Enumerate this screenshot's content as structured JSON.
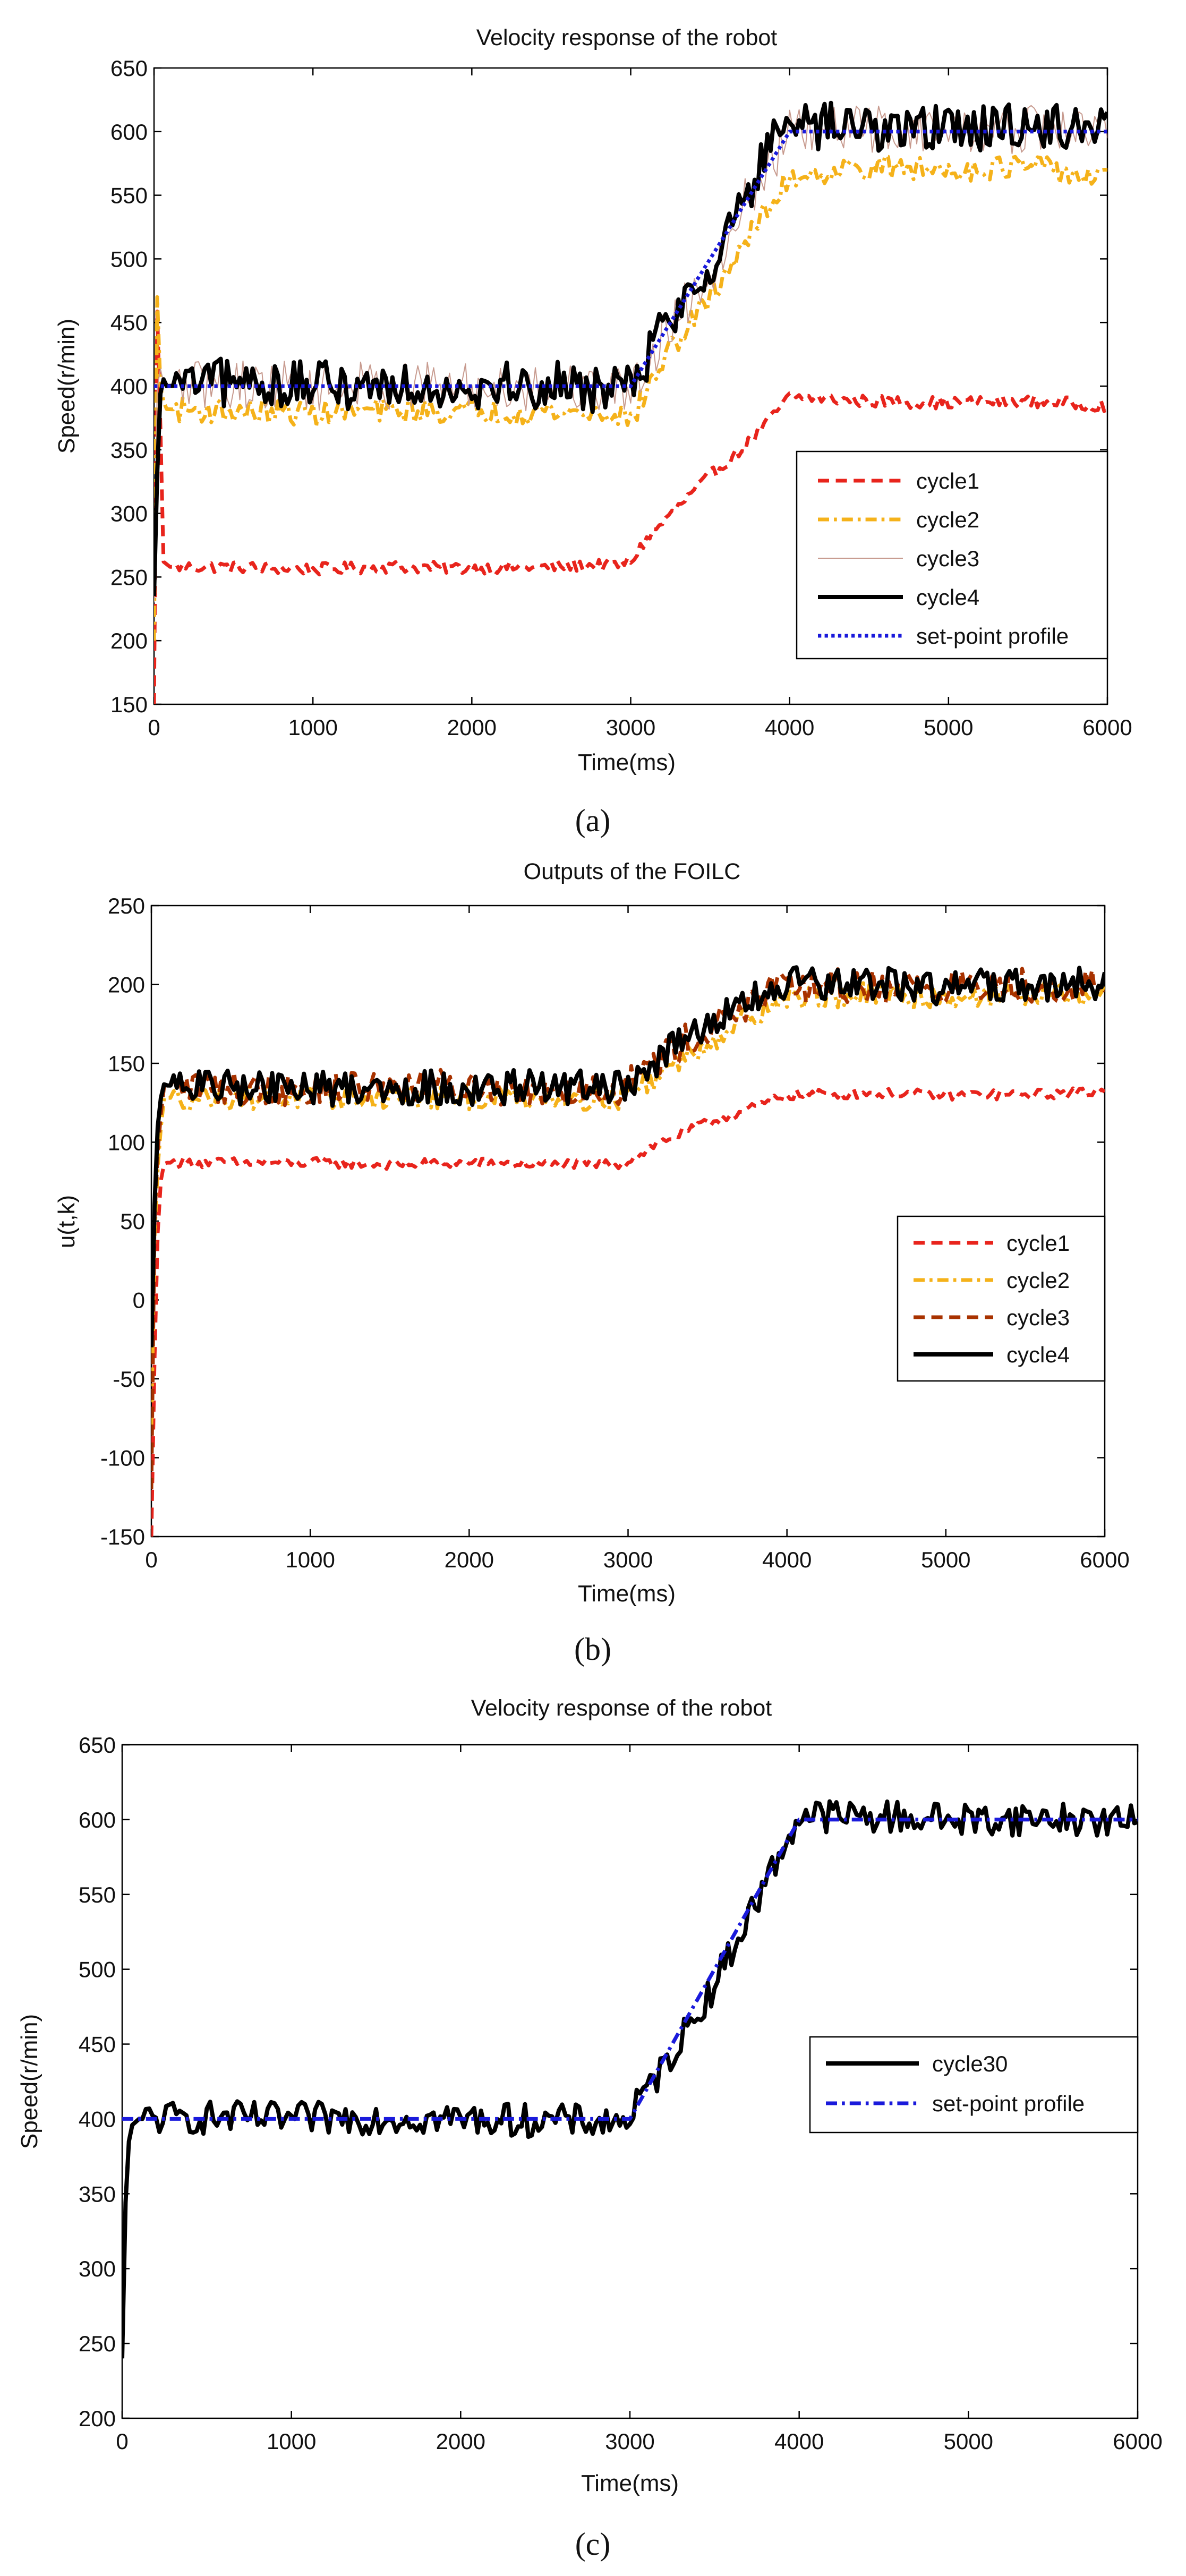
{
  "chart_data": [
    {
      "type": "line",
      "panel_label": "(a)",
      "title": "Velocity response of the robot",
      "xlabel": "Time(ms)",
      "ylabel": "Speed(r/min)",
      "xlim": [
        0,
        6000
      ],
      "ylim": [
        150,
        650
      ],
      "xticks": [
        0,
        1000,
        2000,
        3000,
        4000,
        5000,
        6000
      ],
      "yticks": [
        150,
        200,
        250,
        300,
        350,
        400,
        450,
        500,
        550,
        600,
        650
      ],
      "legend_position": "middle-right",
      "series": [
        {
          "name": "cycle1",
          "color": "#e8241c",
          "style": "dashed",
          "width": 7,
          "points": [
            [
              0,
              150
            ],
            [
              15,
              480
            ],
            [
              35,
              395
            ],
            [
              60,
              262
            ],
            [
              100,
              258
            ],
            [
              500,
              258
            ],
            [
              1000,
              256
            ],
            [
              1500,
              258
            ],
            [
              2000,
              257
            ],
            [
              2500,
              258
            ],
            [
              2950,
              260
            ],
            [
              3000,
              262
            ],
            [
              3100,
              280
            ],
            [
              3300,
              305
            ],
            [
              3500,
              330
            ],
            [
              3700,
              350
            ],
            [
              3850,
              370
            ],
            [
              4000,
              392
            ],
            [
              4500,
              388
            ],
            [
              5000,
              387
            ],
            [
              5500,
              388
            ],
            [
              6000,
              385
            ]
          ],
          "noise": 3
        },
        {
          "name": "cycle2",
          "color": "#f5b21a",
          "style": "dashdot",
          "width": 7,
          "points": [
            [
              0,
              200
            ],
            [
              20,
              470
            ],
            [
              40,
              400
            ],
            [
              70,
              382
            ],
            [
              500,
              380
            ],
            [
              1000,
              379
            ],
            [
              1500,
              381
            ],
            [
              2000,
              380
            ],
            [
              2500,
              380
            ],
            [
              2950,
              378
            ],
            [
              3000,
              372
            ],
            [
              3200,
              420
            ],
            [
              3500,
              470
            ],
            [
              3700,
              510
            ],
            [
              3900,
              545
            ],
            [
              4000,
              565
            ],
            [
              4500,
              572
            ],
            [
              5000,
              570
            ],
            [
              5500,
              573
            ],
            [
              6000,
              562
            ]
          ],
          "noise": 6
        },
        {
          "name": "cycle3",
          "color": "#c79a8e",
          "style": "solid",
          "width": 2,
          "points": [
            [
              0,
              230
            ],
            [
              25,
              440
            ],
            [
              45,
              405
            ],
            [
              80,
              400
            ],
            [
              500,
              402
            ],
            [
              1000,
              400
            ],
            [
              1500,
              401
            ],
            [
              2000,
              399
            ],
            [
              2500,
              400
            ],
            [
              2950,
              398
            ],
            [
              3000,
              395
            ],
            [
              3200,
              440
            ],
            [
              3500,
              490
            ],
            [
              3700,
              540
            ],
            [
              3900,
              580
            ],
            [
              4000,
              598
            ],
            [
              4500,
              603
            ],
            [
              5000,
              600
            ],
            [
              5500,
              602
            ],
            [
              6000,
              600
            ]
          ],
          "noise": 12
        },
        {
          "name": "cycle4",
          "color": "#000000",
          "style": "solid",
          "width": 8,
          "points": [
            [
              0,
              235
            ],
            [
              30,
              380
            ],
            [
              50,
              408
            ],
            [
              80,
              400
            ],
            [
              500,
              403
            ],
            [
              1000,
              400
            ],
            [
              1500,
              402
            ],
            [
              2000,
              401
            ],
            [
              2500,
              400
            ],
            [
              2950,
              398
            ],
            [
              3000,
              400
            ],
            [
              3200,
              445
            ],
            [
              3500,
              495
            ],
            [
              3700,
              545
            ],
            [
              3900,
              590
            ],
            [
              4000,
              603
            ],
            [
              4500,
              604
            ],
            [
              5000,
              602
            ],
            [
              5500,
              605
            ],
            [
              6000,
              603
            ]
          ],
          "noise": 12
        },
        {
          "name": "set-point profile",
          "color": "#1a1adb",
          "style": "dotted",
          "width": 7,
          "points": [
            [
              0,
              400
            ],
            [
              3000,
              400
            ],
            [
              4000,
              600
            ],
            [
              6000,
              600
            ]
          ],
          "noise": 0
        }
      ]
    },
    {
      "type": "line",
      "panel_label": "(b)",
      "title": "Outputs of the FOILC",
      "xlabel": "Time(ms)",
      "ylabel": "u(t,k)",
      "xlim": [
        0,
        6000
      ],
      "ylim": [
        -150,
        250
      ],
      "xticks": [
        0,
        1000,
        2000,
        3000,
        4000,
        5000,
        6000
      ],
      "yticks": [
        -150,
        -100,
        -50,
        0,
        50,
        100,
        150,
        200,
        250
      ],
      "legend_position": "right",
      "series": [
        {
          "name": "cycle1",
          "color": "#e8241c",
          "style": "dashed",
          "width": 7,
          "points": [
            [
              0,
              -150
            ],
            [
              25,
              -10
            ],
            [
              45,
              60
            ],
            [
              70,
              86
            ],
            [
              100,
              87
            ],
            [
              500,
              87
            ],
            [
              1000,
              87
            ],
            [
              1500,
              86
            ],
            [
              2000,
              87
            ],
            [
              2500,
              86
            ],
            [
              2950,
              86
            ],
            [
              3000,
              88
            ],
            [
              3200,
              100
            ],
            [
              3500,
              112
            ],
            [
              3800,
              122
            ],
            [
              4000,
              130
            ],
            [
              4500,
              131
            ],
            [
              5000,
              130
            ],
            [
              5500,
              130
            ],
            [
              6000,
              132
            ]
          ],
          "noise": 2
        },
        {
          "name": "cycle2",
          "color": "#f5b21a",
          "style": "dashdot",
          "width": 7,
          "points": [
            [
              0,
              -80
            ],
            [
              20,
              40
            ],
            [
              45,
              95
            ],
            [
              80,
              128
            ],
            [
              500,
              129
            ],
            [
              1000,
              128
            ],
            [
              1500,
              129
            ],
            [
              2000,
              128
            ],
            [
              2500,
              129
            ],
            [
              2950,
              128
            ],
            [
              3000,
              130
            ],
            [
              3300,
              150
            ],
            [
              3600,
              170
            ],
            [
              3900,
              188
            ],
            [
              4000,
              192
            ],
            [
              4500,
              193
            ],
            [
              5000,
              192
            ],
            [
              5500,
              194
            ],
            [
              6000,
              193
            ]
          ],
          "noise": 5
        },
        {
          "name": "cycle3",
          "color": "#a83200",
          "style": "dashed",
          "width": 7,
          "points": [
            [
              0,
              -120
            ],
            [
              20,
              50
            ],
            [
              45,
              105
            ],
            [
              80,
              135
            ],
            [
              500,
              135
            ],
            [
              1000,
              134
            ],
            [
              1500,
              136
            ],
            [
              2000,
              135
            ],
            [
              2500,
              134
            ],
            [
              2950,
              135
            ],
            [
              3000,
              138
            ],
            [
              3300,
              160
            ],
            [
              3600,
              178
            ],
            [
              3900,
              195
            ],
            [
              4000,
              198
            ],
            [
              4500,
              199
            ],
            [
              5000,
              198
            ],
            [
              5500,
              200
            ],
            [
              6000,
              198
            ]
          ],
          "noise": 7
        },
        {
          "name": "cycle4",
          "color": "#000000",
          "style": "solid",
          "width": 8,
          "points": [
            [
              0,
              -30
            ],
            [
              20,
              60
            ],
            [
              40,
              110
            ],
            [
              70,
              137
            ],
            [
              100,
              136
            ],
            [
              500,
              135
            ],
            [
              1000,
              134
            ],
            [
              1500,
              135
            ],
            [
              2000,
              134
            ],
            [
              2500,
              135
            ],
            [
              2950,
              134
            ],
            [
              3000,
              138
            ],
            [
              3300,
              160
            ],
            [
              3600,
              180
            ],
            [
              3900,
              196
            ],
            [
              4000,
              200
            ],
            [
              4500,
              199
            ],
            [
              4750,
              200
            ],
            [
              5000,
              198
            ],
            [
              5500,
              199
            ],
            [
              6000,
              200
            ]
          ],
          "noise": 7
        }
      ]
    },
    {
      "type": "line",
      "panel_label": "(c)",
      "title": "Velocity response of the robot",
      "xlabel": "Time(ms)",
      "ylabel": "Speed(r/min)",
      "xlim": [
        0,
        6000
      ],
      "ylim": [
        200,
        650
      ],
      "xticks": [
        0,
        1000,
        2000,
        3000,
        4000,
        5000,
        6000
      ],
      "yticks": [
        200,
        250,
        300,
        350,
        400,
        450,
        500,
        550,
        600,
        650
      ],
      "legend_position": "middle-right",
      "series": [
        {
          "name": "cycle30",
          "color": "#000000",
          "style": "solid",
          "width": 8,
          "points": [
            [
              0,
              240
            ],
            [
              25,
              370
            ],
            [
              50,
              395
            ],
            [
              100,
              400
            ],
            [
              500,
              401
            ],
            [
              1000,
              400
            ],
            [
              1500,
              401
            ],
            [
              2000,
              400
            ],
            [
              2500,
              399
            ],
            [
              2950,
              398
            ],
            [
              3000,
              402
            ],
            [
              3200,
              435
            ],
            [
              3500,
              490
            ],
            [
              3700,
              535
            ],
            [
              3900,
              580
            ],
            [
              4000,
              603
            ],
            [
              4500,
              602
            ],
            [
              5000,
              600
            ],
            [
              5500,
              601
            ],
            [
              6000,
              598
            ]
          ],
          "noise": 7
        },
        {
          "name": "set-point profile",
          "color": "#1a1adb",
          "style": "dashdot",
          "width": 7,
          "points": [
            [
              0,
              400
            ],
            [
              3000,
              400
            ],
            [
              4000,
              600
            ],
            [
              6000,
              600
            ]
          ],
          "noise": 0
        }
      ]
    }
  ]
}
